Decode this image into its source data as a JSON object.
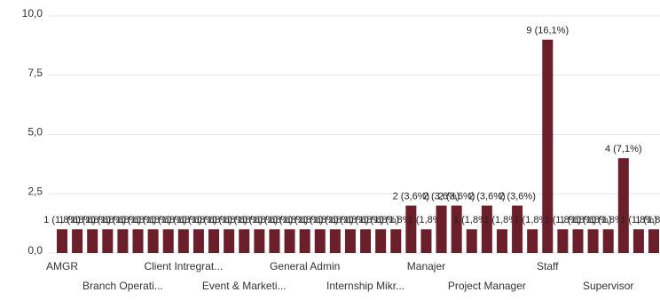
{
  "chart_data": {
    "type": "bar",
    "categories": [
      "AMGR",
      null,
      null,
      null,
      "Branch Operati...",
      null,
      null,
      null,
      "Client Intregrat...",
      null,
      null,
      null,
      "Event & Marketi...",
      null,
      null,
      null,
      "General Admin",
      null,
      null,
      null,
      "Internship Mikr...",
      null,
      null,
      null,
      "Manajer",
      null,
      null,
      null,
      "Project Manager",
      null,
      null,
      null,
      "Staff",
      null,
      null,
      null,
      "Supervisor",
      null,
      null,
      null
    ],
    "values": [
      1,
      1,
      1,
      1,
      1,
      1,
      1,
      1,
      1,
      1,
      1,
      1,
      1,
      1,
      1,
      1,
      1,
      1,
      1,
      1,
      1,
      1,
      1,
      2,
      1,
      2,
      2,
      1,
      2,
      1,
      2,
      1,
      9,
      1,
      1,
      1,
      1,
      4,
      1,
      1
    ],
    "value_labels": [
      "1 (1,8%)",
      "1 (1,8%)",
      "1 (1,8%)",
      "1 (1,8%)",
      "1 (1,8%)",
      "1 (1,8%)",
      "1 (1,8%)",
      "1 (1,8%)",
      "1 (1,8%)",
      "1 (1,8%)",
      "1 (1,8%)",
      "1 (1,8%)",
      "1 (1,8%)",
      "1 (1,8%)",
      "1 (1,8%)",
      "1 (1,8%)",
      "1 (1,8%)",
      "1 (1,8%)",
      "1 (1,8%)",
      "1 (1,8%)",
      "1 (1,8%)",
      "1 (1,8%)",
      "1 (1,8%)",
      "2 (3,6%)",
      "1 (1,8%)",
      "2 (3,6%)",
      "2 (3,6%)",
      "1 (1,8%)",
      "2 (3,6%)",
      "1 (1,8%)",
      "2 (3,6%)",
      "1 (1,8%)",
      "9 (16,1%)",
      "1 (1,8%)",
      "1 (1,8%)",
      "1 (1,8%)",
      "1 (1,8%)",
      "4 (7,1%)",
      "1 (1,8%)",
      "1 (1,8%)"
    ],
    "color": "#6b1f2a",
    "ylim": [
      0,
      10
    ],
    "yticks": [
      {
        "value": 0,
        "label": "0,0"
      },
      {
        "value": 2.5,
        "label": "2,5"
      },
      {
        "value": 5,
        "label": "5,0"
      },
      {
        "value": 7.5,
        "label": "7,5"
      },
      {
        "value": 10,
        "label": "10,0"
      }
    ],
    "grid": true
  }
}
